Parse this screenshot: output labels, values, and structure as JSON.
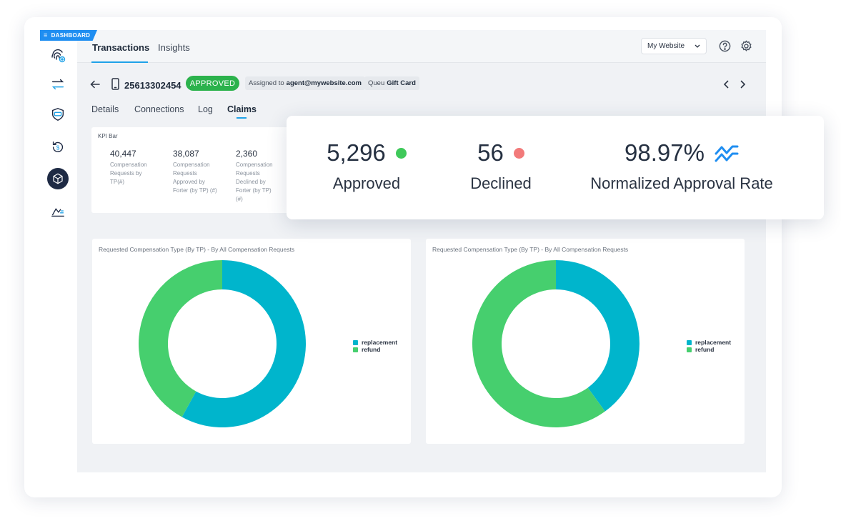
{
  "colors": {
    "accent": "#1fa2e8",
    "approved": "#2bb24c",
    "replacement": "#00b5cc",
    "refund": "#46cf6e",
    "declined_dot": "#f27a7a",
    "approved_dot": "#3fc95a"
  },
  "badge": {
    "dashboard": "DASHBOARD"
  },
  "sidebar": {
    "items": [
      {
        "icon": "fingerprint-icon"
      },
      {
        "icon": "transfer-arrows-icon"
      },
      {
        "icon": "shield-card-icon"
      },
      {
        "icon": "dollar-refresh-icon"
      },
      {
        "icon": "cube-icon",
        "active": true
      },
      {
        "icon": "chart-trend-icon"
      }
    ]
  },
  "header": {
    "tabs": [
      {
        "label": "Transactions",
        "active": true
      },
      {
        "label": "Insights"
      }
    ],
    "site_select": "My Website"
  },
  "transaction": {
    "id": "25613302454",
    "status": "APPROVED",
    "assigned_prefix": "Assigned to",
    "assigned_value": "agent@mywebsite.com",
    "queue_prefix": "Queu",
    "queue_value": "Gift Card"
  },
  "subtabs": [
    {
      "label": "Details"
    },
    {
      "label": "Connections"
    },
    {
      "label": "Log"
    },
    {
      "label": "Claims",
      "active": true
    }
  ],
  "kpi_bar": {
    "title": "KPI Bar",
    "items": [
      {
        "value": "40,447",
        "label": "Compensation Requests by TP(#)"
      },
      {
        "value": "38,087",
        "label": "Compensation Requests Approved by Forter (by TP) (#)"
      },
      {
        "value": "2,360",
        "label": "Compensation Requests Declined by Forter (by TP) (#)"
      }
    ]
  },
  "summary": {
    "approved": {
      "value": "5,296",
      "label": "Approved"
    },
    "declined": {
      "value": "56",
      "label": "Declined"
    },
    "rate": {
      "value": "98.97%",
      "label": "Normalized Approval Rate"
    }
  },
  "chart_data": [
    {
      "type": "pie",
      "title": "Requested Compensation Type (By TP) - By All Compensation Requests",
      "categories": [
        "replacement",
        "refund"
      ],
      "values": [
        58,
        42
      ],
      "legend": "right"
    },
    {
      "type": "pie",
      "title": "Requested Compensation Type (By TP) - By All Compensation Requests",
      "categories": [
        "replacement",
        "refund"
      ],
      "values": [
        40,
        60
      ],
      "legend": "right"
    }
  ]
}
